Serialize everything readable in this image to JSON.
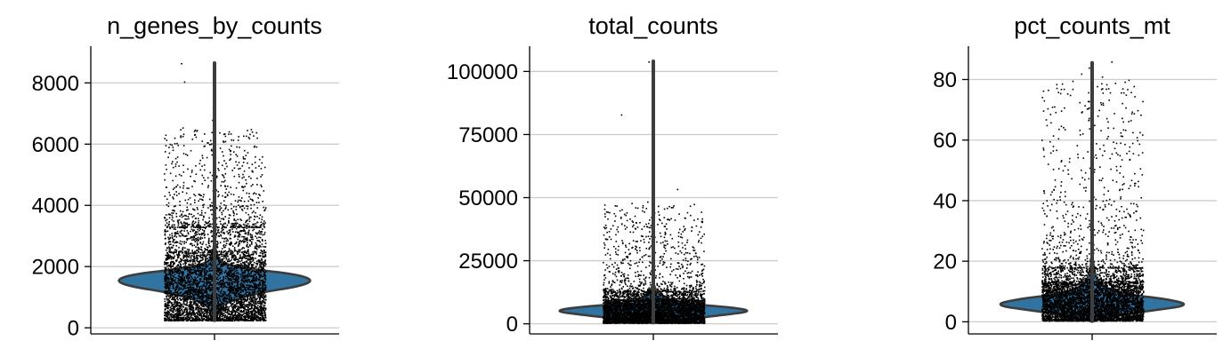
{
  "colors": {
    "violin_fill": "#3274a1",
    "violin_edge": "#3d3d3d",
    "whisker": "#3d3d3d",
    "points": "#000000",
    "grid": "#cccccc"
  },
  "chart_data": [
    {
      "type": "violin",
      "title": "n_genes_by_counts",
      "grid": true,
      "ylim": [
        -200,
        9200
      ],
      "yticks": [
        0,
        2000,
        4000,
        6000,
        8000
      ],
      "ytick_labels": [
        "0",
        "2000",
        "4000",
        "6000",
        "8000"
      ],
      "whisker": [
        250,
        8650
      ],
      "violin_profile": [
        [
          220,
          0.0
        ],
        [
          400,
          0.02
        ],
        [
          800,
          0.08
        ],
        [
          1150,
          0.45
        ],
        [
          1350,
          0.85
        ],
        [
          1550,
          1.0
        ],
        [
          1750,
          0.82
        ],
        [
          1900,
          0.4
        ],
        [
          2100,
          0.06
        ],
        [
          2500,
          0.01
        ],
        [
          3000,
          0.0
        ]
      ],
      "points_dense_range": [
        250,
        3300
      ],
      "points_sparse_max": 6500,
      "outliers": [
        8650,
        8050,
        7200,
        6800,
        6550,
        6400,
        6250
      ]
    },
    {
      "type": "violin",
      "title": "total_counts",
      "grid": true,
      "ylim": [
        -4000,
        110000
      ],
      "yticks": [
        0,
        25000,
        50000,
        75000,
        100000
      ],
      "ytick_labels": [
        "0",
        "25000",
        "50000",
        "75000",
        "100000"
      ],
      "whisker": [
        500,
        104000
      ],
      "violin_profile": [
        [
          300,
          0.0
        ],
        [
          1500,
          0.25
        ],
        [
          3500,
          0.7
        ],
        [
          5000,
          1.0
        ],
        [
          6500,
          0.8
        ],
        [
          8000,
          0.3
        ],
        [
          11000,
          0.05
        ],
        [
          16000,
          0.0
        ]
      ],
      "points_dense_range": [
        500,
        13000
      ],
      "points_sparse_max": 48000,
      "outliers": [
        104000,
        83000,
        53500,
        48500,
        46000
      ]
    },
    {
      "type": "violin",
      "title": "pct_counts_mt",
      "grid": true,
      "ylim": [
        -4,
        91
      ],
      "yticks": [
        0,
        20,
        40,
        60,
        80
      ],
      "ytick_labels": [
        "0",
        "20",
        "40",
        "60",
        "80"
      ],
      "whisker": [
        0.5,
        85.5
      ],
      "violin_profile": [
        [
          0.0,
          0.0
        ],
        [
          1.5,
          0.12
        ],
        [
          3.5,
          0.55
        ],
        [
          5.5,
          1.0
        ],
        [
          7.5,
          0.75
        ],
        [
          9.0,
          0.35
        ],
        [
          11.5,
          0.1
        ],
        [
          15.0,
          0.03
        ],
        [
          22.0,
          0.0
        ]
      ],
      "points_dense_range": [
        0.5,
        18
      ],
      "points_sparse_max": 80,
      "outliers": [
        86,
        84,
        82,
        81
      ]
    }
  ]
}
